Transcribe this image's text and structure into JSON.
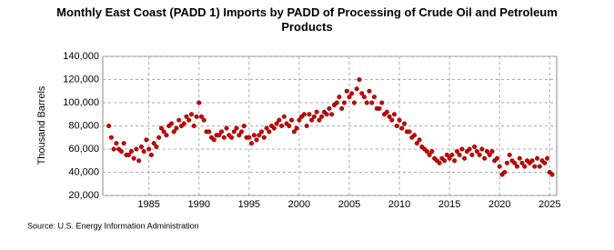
{
  "chart_data": {
    "type": "scatter",
    "title": "Monthly East Coast (PADD 1) Imports by PADD of Processing of Crude Oil and Petroleum Products",
    "y_label": "Thousand Barrels",
    "source": "Source: U.S. Energy Information Administration",
    "color": "#cc0000",
    "grid": true,
    "xlim": [
      1980.4,
      2025.7
    ],
    "xticks": [
      1985,
      1990,
      1995,
      2000,
      2005,
      2010,
      2015,
      2020,
      2025
    ],
    "ylim": [
      20000,
      140000
    ],
    "yticks": [
      {
        "value": 20000,
        "label": "20,000"
      },
      {
        "value": 40000,
        "label": "40,000"
      },
      {
        "value": 60000,
        "label": "60,000"
      },
      {
        "value": 80000,
        "label": "80,000"
      },
      {
        "value": 100000,
        "label": "100,000"
      },
      {
        "value": 120000,
        "label": "120,000"
      },
      {
        "value": 140000,
        "label": "140,000"
      }
    ],
    "x": [
      1981,
      1981.25,
      1981.5,
      1981.75,
      1982,
      1982.25,
      1982.5,
      1982.75,
      1983,
      1983.25,
      1983.5,
      1983.75,
      1984,
      1984.25,
      1984.5,
      1984.75,
      1985,
      1985.25,
      1985.5,
      1985.75,
      1986,
      1986.25,
      1986.5,
      1986.75,
      1987,
      1987.25,
      1987.5,
      1987.75,
      1988,
      1988.25,
      1988.5,
      1988.75,
      1989,
      1989.25,
      1989.5,
      1989.75,
      1990,
      1990.25,
      1990.5,
      1990.75,
      1991,
      1991.25,
      1991.5,
      1991.75,
      1992,
      1992.25,
      1992.5,
      1992.75,
      1993,
      1993.25,
      1993.5,
      1993.75,
      1994,
      1994.25,
      1994.5,
      1994.75,
      1995,
      1995.25,
      1995.5,
      1995.75,
      1996,
      1996.25,
      1996.5,
      1996.75,
      1997,
      1997.25,
      1997.5,
      1997.75,
      1998,
      1998.25,
      1998.5,
      1998.75,
      1999,
      1999.25,
      1999.5,
      1999.75,
      2000,
      2000.25,
      2000.5,
      2000.75,
      2001,
      2001.25,
      2001.5,
      2001.75,
      2002,
      2002.25,
      2002.5,
      2002.75,
      2003,
      2003.25,
      2003.5,
      2003.75,
      2004,
      2004.25,
      2004.5,
      2004.75,
      2005,
      2005.25,
      2005.5,
      2005.75,
      2006,
      2006.25,
      2006.5,
      2006.75,
      2007,
      2007.25,
      2007.5,
      2007.75,
      2008,
      2008.25,
      2008.5,
      2008.75,
      2009,
      2009.25,
      2009.5,
      2009.75,
      2010,
      2010.25,
      2010.5,
      2010.75,
      2011,
      2011.25,
      2011.5,
      2011.75,
      2012,
      2012.25,
      2012.5,
      2012.75,
      2013,
      2013.25,
      2013.5,
      2013.75,
      2014,
      2014.25,
      2014.5,
      2014.75,
      2015,
      2015.25,
      2015.5,
      2015.75,
      2016,
      2016.25,
      2016.5,
      2016.75,
      2017,
      2017.25,
      2017.5,
      2017.75,
      2018,
      2018.25,
      2018.5,
      2018.75,
      2019,
      2019.25,
      2019.5,
      2019.75,
      2020,
      2020.25,
      2020.5,
      2020.75,
      2021,
      2021.25,
      2021.5,
      2021.75,
      2022,
      2022.25,
      2022.5,
      2022.75,
      2023,
      2023.25,
      2023.5,
      2023.75,
      2024,
      2024.25,
      2024.5,
      2024.75,
      2025,
      2025.25
    ],
    "values": [
      80000,
      70000,
      60000,
      65000,
      60000,
      58000,
      65000,
      55000,
      55000,
      58000,
      52000,
      60000,
      50000,
      62000,
      58000,
      68000,
      60000,
      55000,
      65000,
      62000,
      70000,
      78000,
      75000,
      72000,
      80000,
      82000,
      75000,
      78000,
      85000,
      80000,
      82000,
      88000,
      85000,
      90000,
      80000,
      88000,
      100000,
      88000,
      85000,
      75000,
      75000,
      70000,
      68000,
      72000,
      72000,
      75000,
      70000,
      78000,
      72000,
      70000,
      75000,
      78000,
      72000,
      75000,
      80000,
      70000,
      70000,
      65000,
      72000,
      68000,
      72000,
      75000,
      70000,
      78000,
      75000,
      80000,
      78000,
      82000,
      85000,
      80000,
      88000,
      82000,
      80000,
      85000,
      75000,
      78000,
      85000,
      88000,
      90000,
      80000,
      90000,
      85000,
      88000,
      92000,
      85000,
      88000,
      92000,
      90000,
      95000,
      90000,
      98000,
      100000,
      105000,
      95000,
      100000,
      110000,
      105000,
      108000,
      100000,
      112000,
      120000,
      108000,
      105000,
      100000,
      110000,
      100000,
      105000,
      95000,
      95000,
      100000,
      90000,
      92000,
      88000,
      85000,
      90000,
      80000,
      85000,
      78000,
      82000,
      75000,
      75000,
      70000,
      72000,
      65000,
      68000,
      62000,
      60000,
      58000,
      55000,
      58000,
      52000,
      50000,
      48000,
      52000,
      50000,
      55000,
      52000,
      55000,
      50000,
      58000,
      55000,
      60000,
      52000,
      58000,
      60000,
      55000,
      62000,
      58000,
      55000,
      60000,
      52000,
      58000,
      55000,
      58000,
      50000,
      52000,
      45000,
      38000,
      40000,
      48000,
      55000,
      50000,
      48000,
      45000,
      52000,
      48000,
      45000,
      50000,
      48000,
      50000,
      45000,
      52000,
      45000,
      50000,
      48000,
      52000,
      40000,
      38000
    ]
  }
}
